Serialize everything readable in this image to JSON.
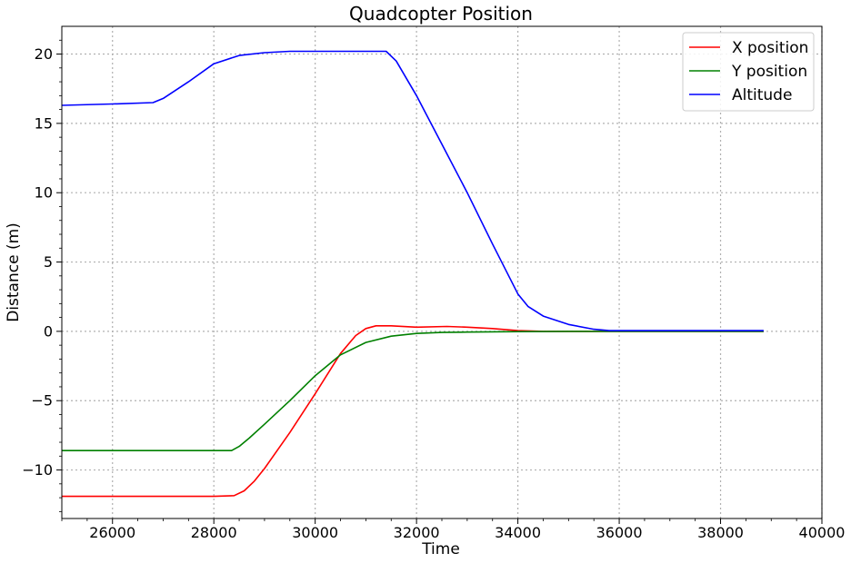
{
  "chart_data": {
    "type": "line",
    "title": "Quadcopter Position",
    "xlabel": "Time",
    "ylabel": "Distance (m)",
    "xlim": [
      25000,
      40000
    ],
    "ylim": [
      -13.5,
      22
    ],
    "xticks": [
      26000,
      28000,
      30000,
      32000,
      34000,
      36000,
      38000,
      40000
    ],
    "xtick_labels": [
      "26000",
      "28000",
      "30000",
      "32000",
      "34000",
      "36000",
      "38000",
      "40000"
    ],
    "yticks": [
      -10,
      -5,
      0,
      5,
      10,
      15,
      20
    ],
    "ytick_labels": [
      "−10",
      "−5",
      "0",
      "5",
      "10",
      "15",
      "20"
    ],
    "grid": true,
    "legend_position": "top-right",
    "series": [
      {
        "name": "X position",
        "color": "#ff0000",
        "x": [
          25000,
          27000,
          28000,
          28400,
          28600,
          28800,
          29000,
          29500,
          30000,
          30500,
          30800,
          31000,
          31200,
          31500,
          32000,
          32600,
          33000,
          33500,
          34000,
          34500,
          35000,
          36000,
          37000,
          38000,
          38850
        ],
        "y": [
          -11.9,
          -11.9,
          -11.9,
          -11.85,
          -11.5,
          -10.8,
          -9.9,
          -7.3,
          -4.5,
          -1.6,
          -0.3,
          0.2,
          0.4,
          0.4,
          0.3,
          0.35,
          0.3,
          0.2,
          0.05,
          0.0,
          0.0,
          0.0,
          0.0,
          0.0,
          0.0
        ]
      },
      {
        "name": "Y position",
        "color": "#008000",
        "x": [
          25000,
          27000,
          28000,
          28350,
          28500,
          28700,
          29000,
          29500,
          30000,
          30500,
          31000,
          31500,
          32000,
          32500,
          33000,
          34000,
          35000,
          36000,
          37000,
          38000,
          38850
        ],
        "y": [
          -8.6,
          -8.6,
          -8.6,
          -8.6,
          -8.3,
          -7.7,
          -6.7,
          -5.0,
          -3.2,
          -1.7,
          -0.8,
          -0.35,
          -0.15,
          -0.08,
          -0.05,
          -0.02,
          0.0,
          0.0,
          0.0,
          0.0,
          0.0
        ]
      },
      {
        "name": "Altitude",
        "color": "#0000ff",
        "x": [
          25000,
          26000,
          26800,
          27000,
          27500,
          28000,
          28500,
          29000,
          29500,
          30000,
          30500,
          31000,
          31400,
          31600,
          32000,
          32500,
          33000,
          33500,
          34000,
          34200,
          34500,
          35000,
          35500,
          35800,
          36000,
          37000,
          38000,
          38850
        ],
        "y": [
          16.3,
          16.4,
          16.5,
          16.8,
          18.0,
          19.3,
          19.9,
          20.1,
          20.2,
          20.2,
          20.2,
          20.2,
          20.2,
          19.5,
          17.0,
          13.5,
          10.0,
          6.3,
          2.7,
          1.8,
          1.1,
          0.5,
          0.15,
          0.05,
          0.05,
          0.05,
          0.05,
          0.05
        ]
      }
    ]
  }
}
